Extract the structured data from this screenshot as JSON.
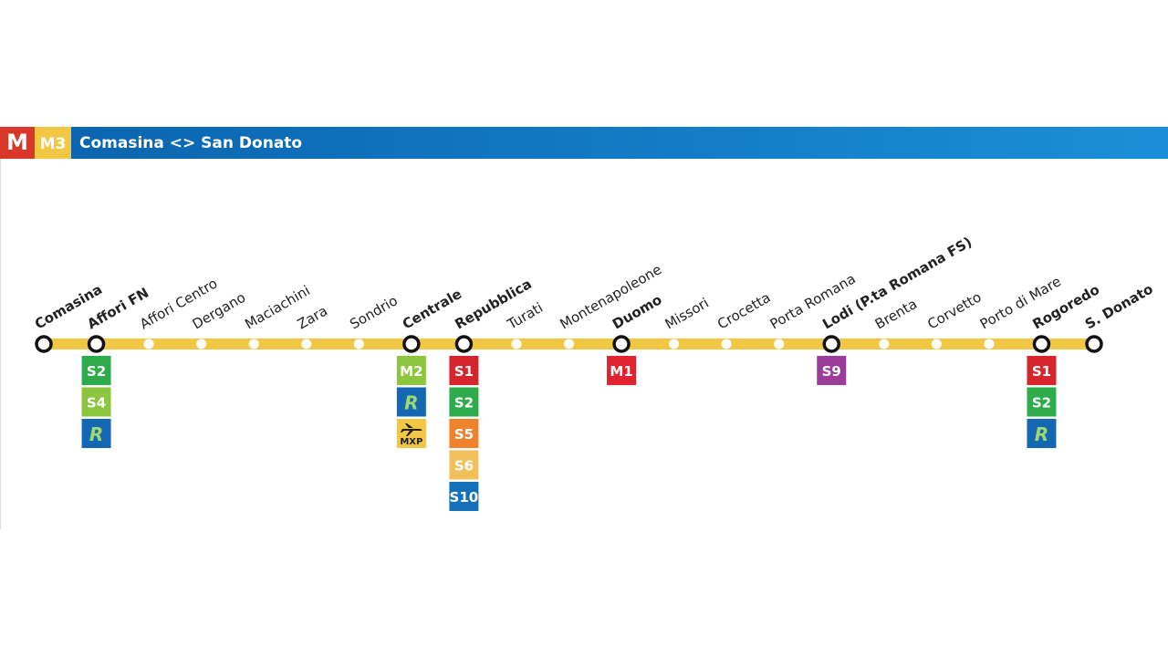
{
  "header": {
    "logo": "M",
    "line": "M3",
    "title": "Comasina <> San Donato"
  },
  "stations": [
    {
      "name": "Comasina",
      "major": true,
      "connections": []
    },
    {
      "name": "Affori FN",
      "major": true,
      "connections": [
        {
          "label": "S2",
          "color": "#2eac4b"
        },
        {
          "label": "S4",
          "color": "#8cc63f"
        },
        {
          "label": "R",
          "color": "#1468b3",
          "text_color": "#9fd86b"
        }
      ]
    },
    {
      "name": "Affori Centro",
      "major": false,
      "connections": []
    },
    {
      "name": "Dergano",
      "major": false,
      "connections": []
    },
    {
      "name": "Maciachini",
      "major": false,
      "connections": []
    },
    {
      "name": "Zara",
      "major": false,
      "connections": []
    },
    {
      "name": "Sondrio",
      "major": false,
      "connections": []
    },
    {
      "name": "Centrale",
      "major": true,
      "connections": [
        {
          "label": "M2",
          "color": "#8cc63f"
        },
        {
          "label": "R",
          "color": "#1468b3",
          "text_color": "#9fd86b"
        },
        {
          "label": "MXP",
          "color": "#f2c744",
          "text_color": "#222",
          "icon": "plane"
        }
      ]
    },
    {
      "name": "Repubblica",
      "major": true,
      "connections": [
        {
          "label": "S1",
          "color": "#d7252d"
        },
        {
          "label": "S2",
          "color": "#2eac4b"
        },
        {
          "label": "S5",
          "color": "#f0812d"
        },
        {
          "label": "S6",
          "color": "#f2c05a"
        },
        {
          "label": "S10",
          "color": "#1470b8"
        }
      ]
    },
    {
      "name": "Turati",
      "major": false,
      "connections": []
    },
    {
      "name": "Montenapoleone",
      "major": false,
      "connections": []
    },
    {
      "name": "Duomo",
      "major": true,
      "connections": [
        {
          "label": "M1",
          "color": "#e2232f"
        }
      ]
    },
    {
      "name": "Missori",
      "major": false,
      "connections": []
    },
    {
      "name": "Crocetta",
      "major": false,
      "connections": []
    },
    {
      "name": "Porta Romana",
      "major": false,
      "connections": []
    },
    {
      "name": "Lodi (P.ta Romana FS)",
      "major": true,
      "connections": [
        {
          "label": "S9",
          "color": "#9b3c9b"
        }
      ]
    },
    {
      "name": "Brenta",
      "major": false,
      "connections": []
    },
    {
      "name": "Corvetto",
      "major": false,
      "connections": []
    },
    {
      "name": "Porto di Mare",
      "major": false,
      "connections": []
    },
    {
      "name": "Rogoredo",
      "major": true,
      "connections": [
        {
          "label": "S1",
          "color": "#d7252d"
        },
        {
          "label": "S2",
          "color": "#2eac4b"
        },
        {
          "label": "R",
          "color": "#1468b3",
          "text_color": "#9fd86b"
        }
      ]
    },
    {
      "name": "S. Donato",
      "major": true,
      "connections": []
    }
  ]
}
